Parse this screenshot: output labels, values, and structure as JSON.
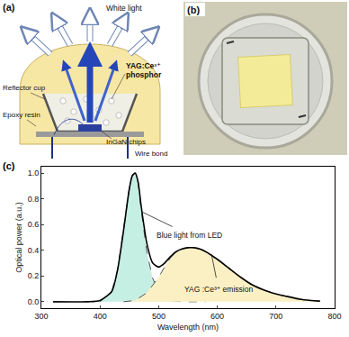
{
  "panel_a": {
    "label": "(a)",
    "white_light": "White light",
    "phosphor": "YAG:Ce³⁺ phosphor",
    "reflector": "Reflector cup",
    "resin": "Epoxy resin",
    "chips": "InGaN chips",
    "wire": "Wire bond"
  },
  "panel_b": {
    "label": "(b)"
  },
  "chart_data": {
    "label": "(c)",
    "type": "line",
    "x_label": "Wavelength (nm)",
    "y_label": "Optical power (a.u.)",
    "xlim": [
      300,
      800
    ],
    "xticks": [
      300,
      400,
      500,
      600,
      700,
      800
    ],
    "ylim": [
      -0.05,
      1.05
    ],
    "yticks": [
      {
        "value": 0,
        "label": "0.0"
      },
      {
        "value": 0.2,
        "label": "0.2"
      },
      {
        "value": 0.4,
        "label": "0.4"
      },
      {
        "value": 0.6,
        "label": "0.6"
      },
      {
        "value": 0.8,
        "label": "0.8"
      },
      {
        "value": 1,
        "label": "1.0"
      }
    ],
    "grid": false,
    "series": [
      {
        "type": "area",
        "color": "#c6efe4",
        "line_style": "dashed",
        "x": [
          400,
          420,
          430,
          440,
          450,
          455,
          460,
          465,
          470,
          480,
          490,
          500,
          510,
          520,
          540,
          580
        ],
        "values": [
          0,
          0.08,
          0.25,
          0.55,
          0.88,
          0.98,
          1.0,
          0.92,
          0.72,
          0.38,
          0.18,
          0.08,
          0.03,
          0.01,
          0,
          0
        ]
      },
      {
        "type": "area",
        "color": "#fbf0c4",
        "line_style": "dashed",
        "x": [
          440,
          460,
          480,
          490,
          500,
          510,
          520,
          530,
          540,
          550,
          560,
          570,
          580,
          600,
          620,
          640,
          660,
          680,
          700,
          720,
          740,
          760,
          775
        ],
        "values": [
          0,
          0.01,
          0.07,
          0.13,
          0.19,
          0.27,
          0.34,
          0.39,
          0.41,
          0.42,
          0.42,
          0.41,
          0.39,
          0.33,
          0.26,
          0.19,
          0.13,
          0.09,
          0.06,
          0.04,
          0.02,
          0.01,
          0.005
        ]
      },
      {
        "type": "line",
        "color": "#000000",
        "line_style": "solid",
        "x": [
          320,
          380,
          400,
          420,
          430,
          440,
          450,
          455,
          460,
          465,
          470,
          480,
          490,
          500,
          510,
          520,
          530,
          540,
          550,
          560,
          570,
          580,
          600,
          620,
          640,
          660,
          680,
          700,
          720,
          740,
          760,
          775
        ],
        "values": [
          0,
          0,
          0.01,
          0.08,
          0.25,
          0.55,
          0.88,
          0.98,
          1.0,
          0.93,
          0.75,
          0.45,
          0.3,
          0.27,
          0.3,
          0.35,
          0.39,
          0.41,
          0.42,
          0.42,
          0.41,
          0.39,
          0.33,
          0.26,
          0.19,
          0.13,
          0.09,
          0.06,
          0.04,
          0.02,
          0.01,
          0.005
        ]
      }
    ],
    "annotations": [
      {
        "text": "Blue light from LED",
        "x": 471,
        "y": 0.7,
        "ax": 552,
        "ay": 0.52
      },
      {
        "text": "YAG :Ce³⁺ emission",
        "x": 590,
        "y": 0.37,
        "ax": 602,
        "ay": 0.1
      }
    ]
  }
}
